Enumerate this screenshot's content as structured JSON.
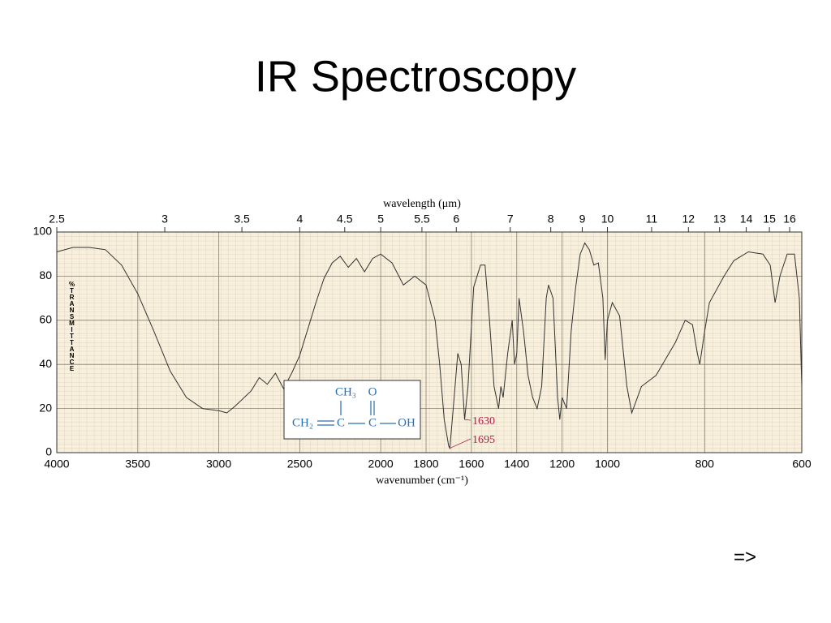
{
  "slide": {
    "title": "IR Spectroscopy",
    "next": "=>"
  },
  "chart_data": {
    "type": "line",
    "x_label": "wavenumber (cm⁻¹)",
    "x2_label": "wavelength (μm)",
    "y_label": "%TRANSMITTANCE",
    "xlim": [
      4000,
      600
    ],
    "xscale": {
      "breaks": [
        2000,
        1000
      ],
      "factors": [
        1,
        1.4,
        3
      ]
    },
    "xticks": [
      4000,
      3500,
      3000,
      2500,
      2000,
      1800,
      1600,
      1400,
      1200,
      1000,
      800,
      600
    ],
    "x2ticks": [
      2.5,
      3,
      3.5,
      4,
      4.5,
      5,
      5.5,
      6,
      7,
      8,
      9,
      10,
      11,
      12,
      13,
      14,
      15,
      16
    ],
    "ylim": [
      0,
      100
    ],
    "yticks": [
      0,
      20,
      40,
      60,
      80,
      100
    ],
    "grid": true,
    "color": "#333333",
    "x": [
      4000,
      3900,
      3800,
      3700,
      3600,
      3500,
      3400,
      3300,
      3200,
      3100,
      3000,
      2950,
      2900,
      2800,
      2750,
      2700,
      2650,
      2600,
      2550,
      2500,
      2450,
      2400,
      2350,
      2300,
      2250,
      2200,
      2150,
      2100,
      2050,
      2000,
      1950,
      1900,
      1850,
      1800,
      1760,
      1740,
      1720,
      1700,
      1695,
      1680,
      1660,
      1645,
      1630,
      1615,
      1590,
      1560,
      1540,
      1520,
      1500,
      1480,
      1470,
      1460,
      1440,
      1420,
      1410,
      1400,
      1390,
      1370,
      1350,
      1330,
      1310,
      1290,
      1270,
      1260,
      1240,
      1220,
      1210,
      1200,
      1180,
      1160,
      1140,
      1120,
      1100,
      1080,
      1060,
      1040,
      1020,
      1010,
      1000,
      990,
      975,
      960,
      950,
      930,
      900,
      860,
      840,
      825,
      815,
      810,
      800,
      790,
      760,
      740,
      710,
      680,
      665,
      655,
      645,
      630,
      615,
      605,
      600
    ],
    "values": [
      91,
      93,
      93,
      92,
      85,
      72,
      55,
      37,
      25,
      20,
      19,
      18,
      21,
      28,
      34,
      31,
      36,
      29,
      36,
      44,
      56,
      68,
      79,
      86,
      89,
      84,
      88,
      82,
      88,
      90,
      86,
      76,
      80,
      76,
      60,
      40,
      15,
      3,
      2,
      20,
      45,
      40,
      15,
      30,
      75,
      85,
      85,
      60,
      30,
      20,
      30,
      25,
      45,
      60,
      40,
      45,
      70,
      55,
      35,
      25,
      20,
      30,
      70,
      76,
      70,
      25,
      15,
      25,
      20,
      55,
      75,
      90,
      95,
      92,
      85,
      86,
      70,
      42,
      60,
      68,
      62,
      30,
      18,
      30,
      35,
      50,
      60,
      58,
      45,
      40,
      55,
      68,
      80,
      87,
      91,
      90,
      85,
      68,
      80,
      90,
      90,
      70,
      30
    ],
    "annotations": [
      1630,
      1695
    ],
    "molecule": {
      "methyl": "CH₃",
      "oxygen": "O",
      "left": "CH₂",
      "c1": "C",
      "c2": "C",
      "right": "OH"
    }
  }
}
